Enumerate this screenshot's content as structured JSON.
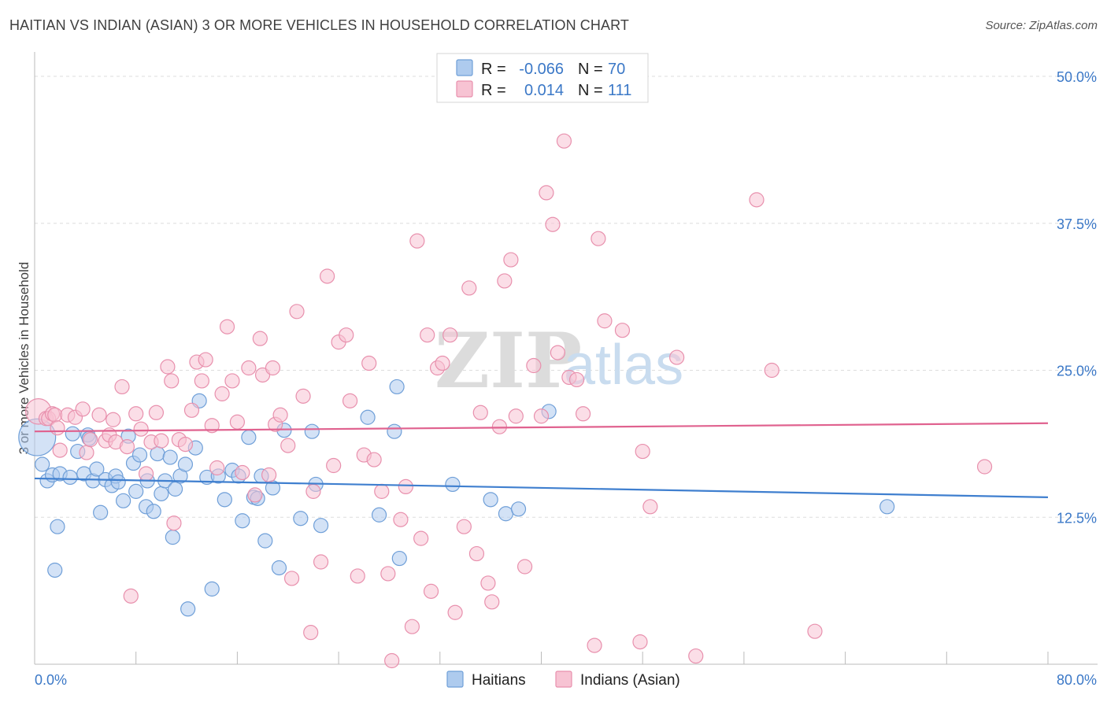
{
  "title": "HAITIAN VS INDIAN (ASIAN) 3 OR MORE VEHICLES IN HOUSEHOLD CORRELATION CHART",
  "source": "Source: ZipAtlas.com",
  "watermark": {
    "zip": "ZIP",
    "atlas": "atlas"
  },
  "colors": {
    "haitians_fill": "#aecbee",
    "haitians_stroke": "#6f9fd8",
    "haitians_line": "#3f7fcf",
    "indians_fill": "#f7c3d3",
    "indians_stroke": "#e890ad",
    "indians_line": "#e0628f",
    "tick_label": "#3b78c7",
    "grid": "#dddddd"
  },
  "legend": {
    "rows": [
      {
        "r_label": "R =",
        "r_value": "-0.066",
        "n_label": "N =",
        "n_value": "70"
      },
      {
        "r_label": "R =",
        "r_value": "0.014",
        "n_label": "N =",
        "n_value": "111"
      }
    ]
  },
  "bottom_legend": {
    "haitians": "Haitians",
    "indians": "Indians (Asian)"
  },
  "chart_data": {
    "type": "scatter",
    "title": "HAITIAN VS INDIAN (ASIAN) 3 OR MORE VEHICLES IN HOUSEHOLD CORRELATION CHART",
    "xlabel": "",
    "ylabel": "3 or more Vehicles in Household",
    "xlim": [
      0,
      80
    ],
    "ylim": [
      0,
      50
    ],
    "x_tick_labels": {
      "min": "0.0%",
      "max": "80.0%"
    },
    "y_ticks": [
      12.5,
      25.0,
      37.5,
      50.0
    ],
    "y_tick_labels": [
      "12.5%",
      "25.0%",
      "37.5%",
      "50.0%"
    ],
    "series": [
      {
        "name": "Haitians",
        "r": -0.066,
        "n": 70,
        "trend": {
          "x": [
            0,
            80
          ],
          "y": [
            15.8,
            14.2
          ]
        },
        "points": [
          [
            0.2,
            19.3,
            2.6
          ],
          [
            0.6,
            17.0,
            1
          ],
          [
            1.0,
            15.6,
            1
          ],
          [
            1.4,
            16.1,
            1
          ],
          [
            1.6,
            8.0,
            1
          ],
          [
            1.8,
            11.7,
            1
          ],
          [
            2.0,
            16.2,
            1
          ],
          [
            2.8,
            15.9,
            1
          ],
          [
            3.0,
            19.6,
            1
          ],
          [
            3.4,
            18.1,
            1
          ],
          [
            3.9,
            16.2,
            1
          ],
          [
            4.2,
            19.5,
            1
          ],
          [
            4.3,
            19.2,
            1
          ],
          [
            4.6,
            15.6,
            1
          ],
          [
            4.9,
            16.6,
            1
          ],
          [
            5.2,
            12.9,
            1
          ],
          [
            5.6,
            15.7,
            1
          ],
          [
            6.1,
            15.2,
            1
          ],
          [
            6.4,
            16.0,
            1
          ],
          [
            6.6,
            15.5,
            1
          ],
          [
            7.0,
            13.9,
            1
          ],
          [
            7.4,
            19.4,
            1
          ],
          [
            7.8,
            17.1,
            1
          ],
          [
            8.0,
            14.7,
            1
          ],
          [
            8.3,
            17.8,
            1
          ],
          [
            8.8,
            13.4,
            1
          ],
          [
            8.9,
            15.6,
            1
          ],
          [
            9.4,
            13.0,
            1
          ],
          [
            9.7,
            17.9,
            1
          ],
          [
            10.0,
            14.5,
            1
          ],
          [
            10.3,
            15.6,
            1
          ],
          [
            10.7,
            17.6,
            1
          ],
          [
            10.9,
            10.8,
            1
          ],
          [
            11.1,
            14.9,
            1
          ],
          [
            11.5,
            16.0,
            1
          ],
          [
            11.9,
            17.0,
            1
          ],
          [
            12.1,
            4.7,
            1
          ],
          [
            12.7,
            18.4,
            1
          ],
          [
            13.0,
            22.4,
            1
          ],
          [
            13.6,
            15.9,
            1
          ],
          [
            14.0,
            6.4,
            1
          ],
          [
            14.5,
            16.0,
            1
          ],
          [
            15.0,
            14.0,
            1
          ],
          [
            15.6,
            16.5,
            1
          ],
          [
            16.1,
            16.0,
            1
          ],
          [
            16.4,
            12.2,
            1
          ],
          [
            16.9,
            19.3,
            1
          ],
          [
            17.3,
            14.2,
            1
          ],
          [
            17.6,
            14.1,
            1
          ],
          [
            17.9,
            16.0,
            1
          ],
          [
            18.2,
            10.5,
            1
          ],
          [
            18.8,
            15.0,
            1
          ],
          [
            19.3,
            8.2,
            1
          ],
          [
            19.7,
            19.9,
            1
          ],
          [
            21.0,
            12.4,
            1
          ],
          [
            21.9,
            19.8,
            1
          ],
          [
            22.2,
            15.3,
            1
          ],
          [
            22.6,
            11.8,
            1
          ],
          [
            26.3,
            21.0,
            1
          ],
          [
            27.2,
            12.7,
            1
          ],
          [
            28.4,
            19.8,
            1
          ],
          [
            28.6,
            23.6,
            1
          ],
          [
            28.8,
            9.0,
            1
          ],
          [
            33.0,
            15.3,
            1
          ],
          [
            36.0,
            14.0,
            1
          ],
          [
            37.2,
            12.8,
            1
          ],
          [
            38.2,
            13.2,
            1
          ],
          [
            40.6,
            21.5,
            1
          ],
          [
            67.3,
            13.4,
            1
          ]
        ]
      },
      {
        "name": "Indians (Asian)",
        "r": 0.014,
        "n": 111,
        "trend": {
          "x": [
            0,
            80
          ],
          "y": [
            19.8,
            20.5
          ]
        },
        "points": [
          [
            0.3,
            21.5,
            1.8
          ],
          [
            0.9,
            20.9,
            1
          ],
          [
            1.1,
            20.9,
            1
          ],
          [
            1.4,
            21.3,
            1
          ],
          [
            1.6,
            21.2,
            1
          ],
          [
            1.8,
            20.1,
            1
          ],
          [
            2.0,
            18.2,
            1
          ],
          [
            2.6,
            21.2,
            1
          ],
          [
            3.2,
            21.0,
            1
          ],
          [
            3.8,
            21.7,
            1
          ],
          [
            4.1,
            18.0,
            1
          ],
          [
            4.4,
            19.1,
            1
          ],
          [
            5.1,
            21.2,
            1
          ],
          [
            5.6,
            19.0,
            1
          ],
          [
            5.9,
            19.5,
            1
          ],
          [
            6.2,
            20.8,
            1
          ],
          [
            6.4,
            18.9,
            1
          ],
          [
            6.9,
            23.6,
            1
          ],
          [
            7.3,
            18.5,
            1
          ],
          [
            7.6,
            5.8,
            1
          ],
          [
            8.0,
            21.3,
            1
          ],
          [
            8.4,
            20.0,
            1
          ],
          [
            8.8,
            16.2,
            1
          ],
          [
            9.2,
            18.9,
            1
          ],
          [
            9.6,
            21.4,
            1
          ],
          [
            10.0,
            19.0,
            1
          ],
          [
            10.5,
            25.3,
            1
          ],
          [
            10.8,
            24.1,
            1
          ],
          [
            11.0,
            12.0,
            1
          ],
          [
            11.4,
            19.1,
            1
          ],
          [
            11.9,
            18.7,
            1
          ],
          [
            12.4,
            21.6,
            1
          ],
          [
            12.8,
            25.7,
            1
          ],
          [
            13.2,
            24.1,
            1
          ],
          [
            13.5,
            25.9,
            1
          ],
          [
            14.0,
            20.3,
            1
          ],
          [
            14.4,
            16.7,
            1
          ],
          [
            14.8,
            23.0,
            1
          ],
          [
            15.2,
            28.7,
            1
          ],
          [
            15.6,
            24.1,
            1
          ],
          [
            16.0,
            20.6,
            1
          ],
          [
            16.4,
            16.3,
            1
          ],
          [
            16.9,
            25.2,
            1
          ],
          [
            17.4,
            14.4,
            1
          ],
          [
            17.8,
            27.7,
            1
          ],
          [
            18.0,
            24.6,
            1
          ],
          [
            18.5,
            16.1,
            1
          ],
          [
            18.8,
            25.2,
            1
          ],
          [
            19.0,
            20.4,
            1
          ],
          [
            19.4,
            21.2,
            1
          ],
          [
            20.0,
            18.6,
            1
          ],
          [
            20.3,
            7.3,
            1
          ],
          [
            20.7,
            30.0,
            1
          ],
          [
            21.2,
            22.8,
            1
          ],
          [
            21.8,
            2.7,
            1
          ],
          [
            22.0,
            14.7,
            1
          ],
          [
            22.6,
            8.7,
            1
          ],
          [
            23.1,
            33.0,
            1
          ],
          [
            23.6,
            16.9,
            1
          ],
          [
            24.0,
            27.4,
            1
          ],
          [
            24.6,
            28.0,
            1
          ],
          [
            24.9,
            22.4,
            1
          ],
          [
            25.5,
            7.5,
            1
          ],
          [
            26.0,
            17.8,
            1
          ],
          [
            26.4,
            25.6,
            1
          ],
          [
            26.8,
            17.4,
            1
          ],
          [
            27.4,
            14.7,
            1
          ],
          [
            27.9,
            7.7,
            1
          ],
          [
            28.2,
            0.3,
            1
          ],
          [
            28.9,
            12.3,
            1
          ],
          [
            29.3,
            15.1,
            1
          ],
          [
            29.8,
            3.2,
            1
          ],
          [
            30.2,
            36.0,
            1
          ],
          [
            30.5,
            10.7,
            1
          ],
          [
            31.0,
            28.0,
            1
          ],
          [
            31.3,
            6.2,
            1
          ],
          [
            31.8,
            25.2,
            1
          ],
          [
            32.2,
            25.6,
            1
          ],
          [
            32.8,
            28.0,
            1
          ],
          [
            33.2,
            4.4,
            1
          ],
          [
            33.9,
            11.7,
            1
          ],
          [
            34.3,
            32.0,
            1
          ],
          [
            34.9,
            9.4,
            1
          ],
          [
            35.2,
            21.4,
            1
          ],
          [
            35.8,
            6.9,
            1
          ],
          [
            36.1,
            5.3,
            1
          ],
          [
            36.7,
            20.2,
            1
          ],
          [
            37.1,
            32.6,
            1
          ],
          [
            37.6,
            34.4,
            1
          ],
          [
            38.0,
            21.1,
            1
          ],
          [
            38.7,
            8.3,
            1
          ],
          [
            39.4,
            25.4,
            1
          ],
          [
            40.0,
            21.1,
            1
          ],
          [
            40.4,
            40.1,
            1
          ],
          [
            40.9,
            37.4,
            1
          ],
          [
            41.3,
            26.5,
            1
          ],
          [
            41.8,
            44.5,
            1
          ],
          [
            42.2,
            24.4,
            1
          ],
          [
            42.8,
            24.2,
            1
          ],
          [
            43.3,
            21.3,
            1
          ],
          [
            44.2,
            1.6,
            1
          ],
          [
            44.5,
            36.2,
            1
          ],
          [
            45.0,
            29.2,
            1
          ],
          [
            46.4,
            28.4,
            1
          ],
          [
            47.8,
            1.9,
            1
          ],
          [
            48.0,
            18.1,
            1
          ],
          [
            48.6,
            13.4,
            1
          ],
          [
            50.7,
            26.1,
            1
          ],
          [
            52.2,
            0.7,
            1
          ],
          [
            57.0,
            39.5,
            1
          ],
          [
            58.2,
            25.0,
            1
          ],
          [
            61.6,
            2.8,
            1
          ],
          [
            75.0,
            16.8,
            1
          ]
        ]
      }
    ]
  }
}
